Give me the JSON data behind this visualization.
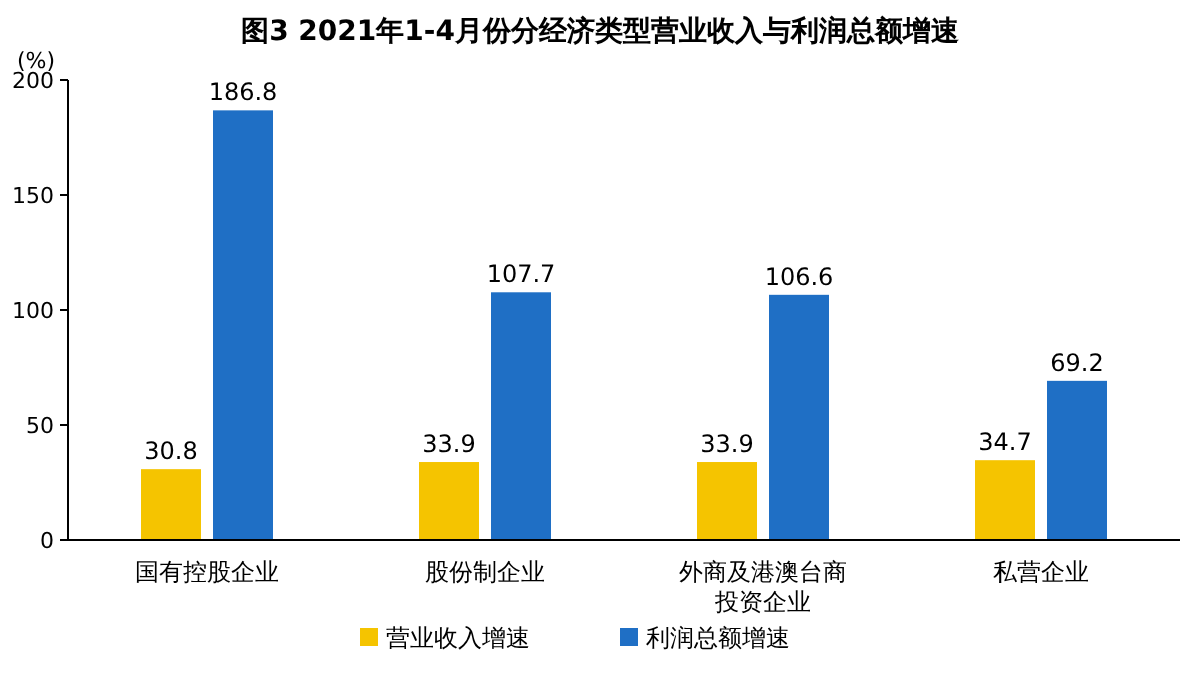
{
  "chart_data": {
    "type": "bar",
    "title": "图3  2021年1-4月份分经济类型营业收入与利润总额增速",
    "ylabel": "(%)",
    "categories": [
      "国有控股企业",
      "股份制企业",
      "外商及港澳台商投资企业",
      "私营企业"
    ],
    "series": [
      {
        "name": "营业收入增速",
        "color": "#f5c400",
        "values": [
          30.8,
          33.9,
          33.9,
          34.7
        ]
      },
      {
        "name": "利润总额增速",
        "color": "#1f6fc5",
        "values": [
          186.8,
          107.7,
          106.6,
          69.2
        ]
      }
    ],
    "ylim": [
      0,
      200
    ],
    "yticks": [
      0,
      50,
      100,
      150,
      200
    ],
    "data_labels": true,
    "legend": "bottom",
    "grid": false
  }
}
